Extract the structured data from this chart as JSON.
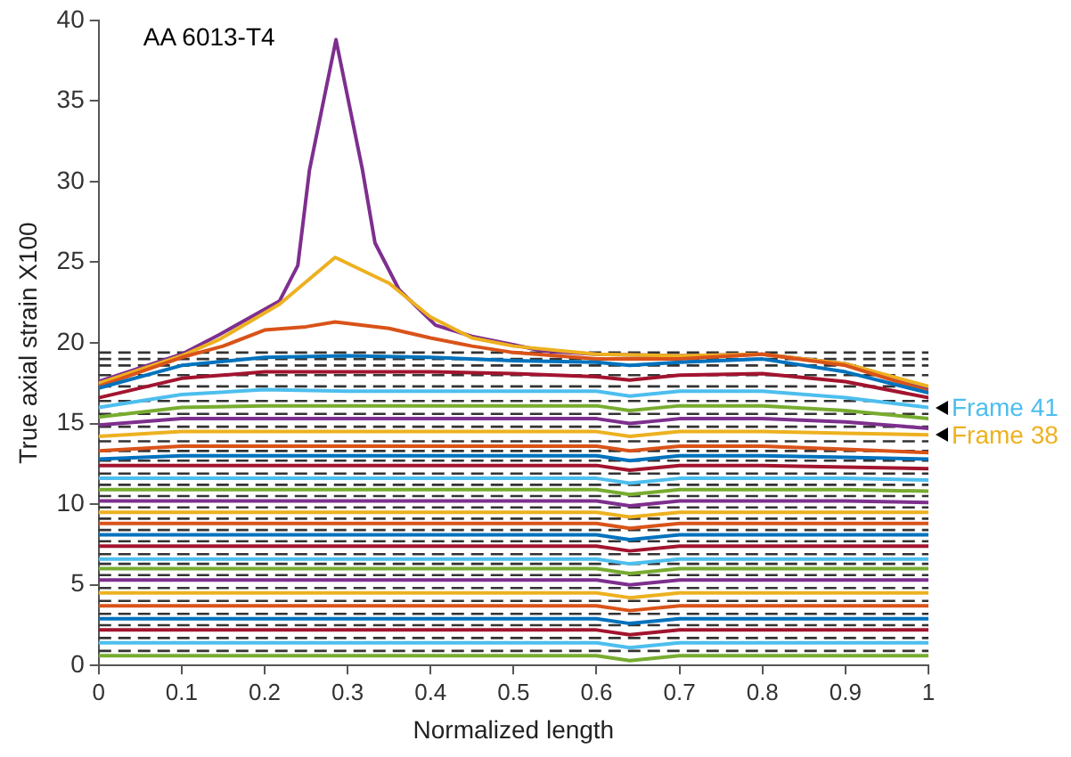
{
  "chart_data": {
    "type": "line",
    "xlabel": "Normalized length",
    "ylabel": "True axial strain X100",
    "x": [
      0,
      0.1,
      0.2,
      0.3,
      0.4,
      0.5,
      0.6,
      0.64,
      0.7,
      0.8,
      0.9,
      1
    ],
    "xlim": [
      0,
      1
    ],
    "xticks": [
      0,
      0.1,
      0.2,
      0.3,
      0.4,
      0.5,
      0.6,
      0.7,
      0.8,
      0.9,
      1
    ],
    "ylim": [
      0,
      40
    ],
    "yticks": [
      0,
      5,
      10,
      15,
      20,
      25,
      30,
      35,
      40
    ],
    "grid": false,
    "legend": false,
    "marker": "none",
    "line_style": "solid",
    "series": [
      {
        "color": "#77ac30",
        "values": [
          0.6,
          0.6,
          0.6,
          0.6,
          0.6,
          0.6,
          0.6,
          0.3,
          0.6,
          0.6,
          0.6,
          0.6
        ]
      },
      {
        "color": "#4dbeee",
        "values": [
          1.4,
          1.4,
          1.4,
          1.4,
          1.4,
          1.4,
          1.4,
          1.1,
          1.4,
          1.4,
          1.4,
          1.4
        ]
      },
      {
        "color": "#a2142f",
        "values": [
          2.2,
          2.2,
          2.2,
          2.2,
          2.2,
          2.2,
          2.2,
          1.9,
          2.2,
          2.2,
          2.2,
          2.2
        ]
      },
      {
        "color": "#0072bd",
        "values": [
          2.9,
          2.9,
          2.9,
          2.9,
          2.9,
          2.9,
          2.9,
          2.6,
          2.9,
          2.9,
          2.9,
          2.9
        ]
      },
      {
        "color": "#d95319",
        "values": [
          3.7,
          3.7,
          3.7,
          3.7,
          3.7,
          3.7,
          3.7,
          3.4,
          3.7,
          3.7,
          3.7,
          3.7
        ]
      },
      {
        "color": "#edb120",
        "values": [
          4.5,
          4.5,
          4.5,
          4.5,
          4.5,
          4.5,
          4.5,
          4.2,
          4.5,
          4.5,
          4.5,
          4.5
        ]
      },
      {
        "color": "#7e2f8e",
        "values": [
          5.3,
          5.3,
          5.3,
          5.3,
          5.3,
          5.3,
          5.3,
          5.0,
          5.3,
          5.3,
          5.3,
          5.3
        ]
      },
      {
        "color": "#77ac30",
        "values": [
          6.0,
          6.0,
          6.0,
          6.0,
          6.0,
          6.0,
          6.0,
          5.7,
          6.0,
          6.0,
          6.0,
          6.0
        ]
      },
      {
        "color": "#4dbeee",
        "values": [
          6.6,
          6.6,
          6.6,
          6.6,
          6.6,
          6.6,
          6.6,
          6.3,
          6.6,
          6.6,
          6.6,
          6.6
        ]
      },
      {
        "color": "#a2142f",
        "values": [
          7.4,
          7.4,
          7.4,
          7.4,
          7.4,
          7.4,
          7.4,
          7.1,
          7.4,
          7.4,
          7.4,
          7.4
        ]
      },
      {
        "color": "#0072bd",
        "values": [
          8.1,
          8.1,
          8.1,
          8.1,
          8.1,
          8.1,
          8.1,
          7.8,
          8.1,
          8.1,
          8.1,
          8.1
        ]
      },
      {
        "color": "#d95319",
        "values": [
          8.8,
          8.8,
          8.8,
          8.8,
          8.8,
          8.8,
          8.8,
          8.5,
          8.8,
          8.8,
          8.8,
          8.8
        ]
      },
      {
        "color": "#edb120",
        "values": [
          9.5,
          9.5,
          9.5,
          9.5,
          9.5,
          9.5,
          9.5,
          9.2,
          9.5,
          9.5,
          9.5,
          9.5
        ]
      },
      {
        "color": "#7e2f8e",
        "values": [
          10.2,
          10.2,
          10.2,
          10.2,
          10.2,
          10.2,
          10.2,
          9.9,
          10.2,
          10.2,
          10.2,
          10.1
        ]
      },
      {
        "color": "#77ac30",
        "values": [
          10.9,
          10.9,
          10.9,
          10.9,
          10.9,
          10.9,
          10.9,
          10.6,
          10.9,
          10.9,
          10.9,
          10.8
        ]
      },
      {
        "color": "#4dbeee",
        "values": [
          11.6,
          11.6,
          11.6,
          11.6,
          11.6,
          11.6,
          11.6,
          11.3,
          11.6,
          11.6,
          11.6,
          11.5
        ]
      },
      {
        "color": "#a2142f",
        "values": [
          12.4,
          12.4,
          12.4,
          12.4,
          12.4,
          12.4,
          12.4,
          12.1,
          12.4,
          12.4,
          12.3,
          12.2
        ]
      },
      {
        "color": "#0072bd",
        "values": [
          12.8,
          13.0,
          13.0,
          13.0,
          13.0,
          13.0,
          13.0,
          12.7,
          13.0,
          13.0,
          12.9,
          12.8
        ]
      },
      {
        "color": "#d95319",
        "values": [
          13.3,
          13.6,
          13.6,
          13.6,
          13.6,
          13.6,
          13.6,
          13.3,
          13.6,
          13.6,
          13.4,
          13.2
        ]
      },
      {
        "color": "#edb120",
        "values": [
          14.2,
          14.5,
          14.5,
          14.5,
          14.5,
          14.5,
          14.5,
          14.2,
          14.5,
          14.5,
          14.4,
          14.3
        ]
      },
      {
        "color": "#7e2f8e",
        "values": [
          14.9,
          15.3,
          15.3,
          15.3,
          15.3,
          15.3,
          15.3,
          15.0,
          15.3,
          15.3,
          15.1,
          14.7
        ]
      },
      {
        "color": "#77ac30",
        "values": [
          15.4,
          16.0,
          16.1,
          16.1,
          16.1,
          16.1,
          16.1,
          15.8,
          16.1,
          16.1,
          15.8,
          15.3
        ]
      },
      {
        "color": "#4dbeee",
        "values": [
          16.0,
          16.8,
          17.1,
          17.0,
          17.0,
          17.0,
          17.0,
          16.7,
          17.0,
          17.0,
          16.6,
          16.0
        ]
      },
      {
        "color": "#a2142f",
        "values": [
          16.6,
          17.8,
          18.2,
          18.2,
          18.2,
          18.1,
          17.9,
          17.7,
          18.0,
          18.1,
          17.6,
          16.6
        ]
      },
      {
        "color": "#0072bd",
        "values": [
          17.2,
          18.6,
          19.1,
          19.2,
          19.1,
          18.9,
          18.8,
          18.6,
          18.8,
          19.0,
          18.2,
          16.9
        ]
      },
      {
        "color": "#d95319",
        "x": [
          0,
          0.1,
          0.15,
          0.2,
          0.25,
          0.285,
          0.35,
          0.4,
          0.45,
          0.5,
          0.6,
          0.7,
          0.8,
          0.9,
          1
        ],
        "values": [
          17.3,
          19.1,
          19.8,
          20.8,
          21.0,
          21.3,
          20.9,
          20.3,
          19.8,
          19.4,
          19.0,
          19.0,
          19.3,
          18.6,
          17.0
        ]
      },
      {
        "color": "#edb120",
        "x": [
          0,
          0.1,
          0.145,
          0.218,
          0.285,
          0.35,
          0.4,
          0.45,
          0.5,
          0.6,
          0.7,
          0.8,
          0.9,
          1
        ],
        "values": [
          17.5,
          19.2,
          20.2,
          22.4,
          25.3,
          23.7,
          21.6,
          20.3,
          19.8,
          19.3,
          19.2,
          19.3,
          18.7,
          17.3
        ]
      },
      {
        "color": "#7e2f8e",
        "x": [
          0,
          0.1,
          0.145,
          0.218,
          0.24,
          0.254,
          0.286,
          0.318,
          0.333,
          0.362,
          0.406,
          0.45,
          0.498,
          0.535,
          0.6,
          0.7,
          0.8,
          0.9,
          1
        ],
        "values": [
          17.6,
          19.3,
          20.5,
          22.6,
          24.8,
          30.7,
          38.8,
          30.7,
          26.2,
          23.3,
          21.1,
          20.4,
          19.9,
          19.5,
          19.3,
          19.2,
          19.3,
          18.7,
          17.2
        ]
      }
    ],
    "ref_lines": [
      {
        "axis": "y",
        "value": 19.4,
        "color": "#333333",
        "line_style": "dashed"
      },
      {
        "axis": "y",
        "value": 19.0,
        "color": "#333333",
        "line_style": "dashed"
      },
      {
        "axis": "y",
        "value": 18.6,
        "color": "#333333",
        "line_style": "dashed"
      },
      {
        "axis": "y",
        "value": 18.0,
        "color": "#333333",
        "line_style": "dashed"
      },
      {
        "axis": "y",
        "value": 17.3,
        "color": "#333333",
        "line_style": "dashed"
      },
      {
        "axis": "y",
        "value": 16.4,
        "color": "#333333",
        "line_style": "dashed"
      },
      {
        "axis": "y",
        "value": 15.6,
        "color": "#333333",
        "line_style": "dashed"
      },
      {
        "axis": "y",
        "value": 14.8,
        "color": "#333333",
        "line_style": "dashed"
      },
      {
        "axis": "y",
        "value": 13.9,
        "color": "#333333",
        "line_style": "dashed"
      },
      {
        "axis": "y",
        "value": 13.3,
        "color": "#333333",
        "line_style": "dashed"
      },
      {
        "axis": "y",
        "value": 12.7,
        "color": "#333333",
        "line_style": "dashed"
      },
      {
        "axis": "y",
        "value": 11.9,
        "color": "#333333",
        "line_style": "dashed"
      },
      {
        "axis": "y",
        "value": 11.2,
        "color": "#333333",
        "line_style": "dashed"
      },
      {
        "axis": "y",
        "value": 10.5,
        "color": "#333333",
        "line_style": "dashed"
      },
      {
        "axis": "y",
        "value": 9.8,
        "color": "#333333",
        "line_style": "dashed"
      },
      {
        "axis": "y",
        "value": 9.1,
        "color": "#333333",
        "line_style": "dashed"
      },
      {
        "axis": "y",
        "value": 8.4,
        "color": "#333333",
        "line_style": "dashed"
      },
      {
        "axis": "y",
        "value": 7.7,
        "color": "#333333",
        "line_style": "dashed"
      },
      {
        "axis": "y",
        "value": 6.9,
        "color": "#333333",
        "line_style": "dashed"
      },
      {
        "axis": "y",
        "value": 6.3,
        "color": "#333333",
        "line_style": "dashed"
      },
      {
        "axis": "y",
        "value": 5.6,
        "color": "#333333",
        "line_style": "dashed"
      },
      {
        "axis": "y",
        "value": 4.8,
        "color": "#333333",
        "line_style": "dashed"
      },
      {
        "axis": "y",
        "value": 4.0,
        "color": "#333333",
        "line_style": "dashed"
      },
      {
        "axis": "y",
        "value": 3.2,
        "color": "#333333",
        "line_style": "dashed"
      },
      {
        "axis": "y",
        "value": 2.5,
        "color": "#333333",
        "line_style": "dashed"
      },
      {
        "axis": "y",
        "value": 1.7,
        "color": "#333333",
        "line_style": "dashed"
      },
      {
        "axis": "y",
        "value": 0.9,
        "color": "#333333",
        "line_style": "dashed"
      }
    ],
    "annotations": [
      "AA 6013-T4",
      {
        "text": "Frame 41",
        "x": 1,
        "y": 16.0
      },
      {
        "text": "Frame 38",
        "x": 1,
        "y": 14.3
      }
    ]
  }
}
